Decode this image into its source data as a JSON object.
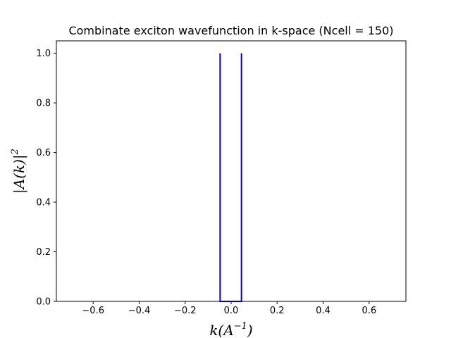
{
  "chart_data": {
    "type": "line",
    "title": "Combinate exciton wavefunction in k-space (Ncell = 150)",
    "xlabel": {
      "base": "k(A",
      "exp": "−1",
      "close": ")"
    },
    "ylabel": {
      "base": "|A(k)|",
      "exp": "2"
    },
    "xlim": [
      -0.76,
      0.76
    ],
    "ylim": [
      0.0,
      1.05
    ],
    "xticks": [
      -0.6,
      -0.4,
      -0.2,
      0.0,
      0.2,
      0.4,
      0.6
    ],
    "xtick_labels": [
      "−0.6",
      "−0.4",
      "−0.2",
      "0.0",
      "0.2",
      "0.4",
      "0.6"
    ],
    "yticks": [
      0.0,
      0.2,
      0.4,
      0.6,
      0.8,
      1.0
    ],
    "ytick_labels": [
      "0.0",
      "0.2",
      "0.4",
      "0.6",
      "0.8",
      "1.0"
    ],
    "grid": false,
    "series": [
      {
        "color": "#0000cc",
        "points": [
          [
            -0.048,
            0.0
          ],
          [
            -0.048,
            1.0
          ],
          [
            -0.048,
            0.0
          ],
          [
            0.045,
            0.0
          ],
          [
            0.045,
            1.0
          ],
          [
            0.045,
            0.0
          ]
        ]
      }
    ]
  }
}
